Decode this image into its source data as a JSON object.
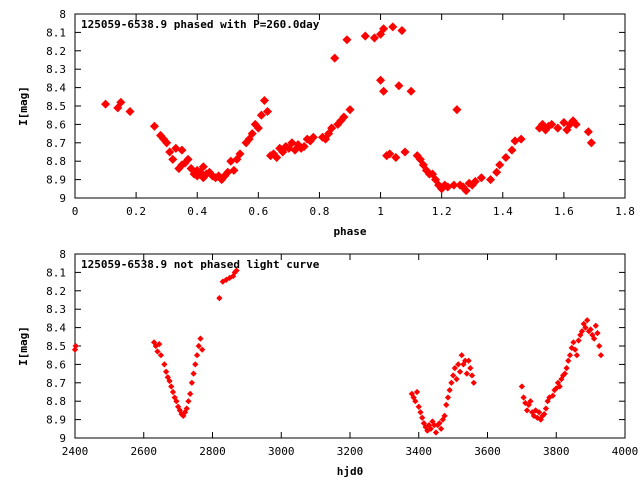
{
  "chart_data": [
    {
      "type": "scatter",
      "title": "125059-6538.9 phased with P=260.0day",
      "xlabel": "phase",
      "ylabel": "I[mag]",
      "xlim": [
        0,
        1.8
      ],
      "ylim": [
        8,
        9
      ],
      "y_inverted": true,
      "xticks": [
        "0",
        "0.2",
        "0.4",
        "0.6",
        "0.8",
        "1",
        "1.2",
        "1.4",
        "1.6",
        "1.8"
      ],
      "yticks": [
        "8",
        "8.1",
        "8.2",
        "8.3",
        "8.4",
        "8.5",
        "8.6",
        "8.7",
        "8.8",
        "8.9",
        "9"
      ],
      "grid": false,
      "legend": "none",
      "marker_color": "#ff0000",
      "series": [
        {
          "x": [
            0.1,
            0.14,
            0.15,
            0.18,
            0.26,
            0.28,
            0.29,
            0.3,
            0.31,
            0.32,
            0.33,
            0.34,
            0.35,
            0.35,
            0.36,
            0.37,
            0.38,
            0.39,
            0.4,
            0.4,
            0.41,
            0.42,
            0.42,
            0.43,
            0.44,
            0.45,
            0.46,
            0.47,
            0.48,
            0.49,
            0.5,
            0.51,
            0.52,
            0.53,
            0.54,
            0.56,
            0.57,
            0.58,
            0.59,
            0.6,
            0.61,
            0.62,
            0.63,
            0.64,
            0.65,
            0.66,
            0.67,
            0.68,
            0.69,
            0.7,
            0.71,
            0.72,
            0.73,
            0.74,
            0.75,
            0.76,
            0.77,
            0.78,
            0.81,
            0.82,
            0.83,
            0.84,
            0.85,
            0.86,
            0.87,
            0.88,
            0.89,
            0.9,
            0.95,
            0.98,
            1.0,
            1.0,
            1.01,
            1.01,
            1.02,
            1.03,
            1.04,
            1.05,
            1.06,
            1.07,
            1.08,
            1.1,
            1.12,
            1.13,
            1.14,
            1.15,
            1.16,
            1.17,
            1.18,
            1.19,
            1.2,
            1.21,
            1.22,
            1.24,
            1.25,
            1.26,
            1.27,
            1.28,
            1.29,
            1.3,
            1.31,
            1.33,
            1.36,
            1.38,
            1.39,
            1.41,
            1.43,
            1.44,
            1.46,
            1.52,
            1.53,
            1.54,
            1.55,
            1.56,
            1.58,
            1.6,
            1.61,
            1.62,
            1.63,
            1.64,
            1.68,
            1.69
          ],
          "y": [
            8.49,
            8.51,
            8.48,
            8.53,
            8.61,
            8.66,
            8.68,
            8.7,
            8.75,
            8.79,
            8.73,
            8.84,
            8.74,
            8.82,
            8.81,
            8.79,
            8.84,
            8.87,
            8.85,
            8.88,
            8.86,
            8.83,
            8.89,
            8.87,
            8.86,
            8.88,
            8.89,
            8.88,
            8.9,
            8.88,
            8.86,
            8.8,
            8.85,
            8.79,
            8.76,
            8.7,
            8.68,
            8.65,
            8.6,
            8.62,
            8.55,
            8.47,
            8.53,
            8.77,
            8.76,
            8.78,
            8.73,
            8.75,
            8.72,
            8.73,
            8.7,
            8.74,
            8.71,
            8.73,
            8.72,
            8.68,
            8.69,
            8.67,
            8.67,
            8.68,
            8.65,
            8.62,
            8.24,
            8.6,
            8.58,
            8.56,
            8.14,
            8.52,
            8.12,
            8.13,
            8.36,
            8.11,
            8.08,
            8.42,
            8.77,
            8.76,
            8.07,
            8.78,
            8.39,
            8.09,
            8.75,
            8.42,
            8.77,
            8.79,
            8.82,
            8.85,
            8.87,
            8.87,
            8.9,
            8.93,
            8.95,
            8.93,
            8.94,
            8.93,
            8.52,
            8.93,
            8.94,
            8.96,
            8.92,
            8.93,
            8.91,
            8.89,
            8.9,
            8.86,
            8.82,
            8.78,
            8.74,
            8.69,
            8.68,
            8.62,
            8.6,
            8.63,
            8.61,
            8.6,
            8.62,
            8.59,
            8.63,
            8.6,
            8.58,
            8.6,
            8.64,
            8.7
          ]
        }
      ]
    },
    {
      "type": "scatter",
      "title": "125059-6538.9 not phased light curve",
      "xlabel": "hjd0",
      "ylabel": "I[mag]",
      "xlim": [
        2400,
        4000
      ],
      "ylim": [
        8,
        9
      ],
      "y_inverted": true,
      "xticks": [
        "2400",
        "2600",
        "2800",
        "3000",
        "3200",
        "3400",
        "3600",
        "3800",
        "4000"
      ],
      "yticks": [
        "8",
        "8.1",
        "8.2",
        "8.3",
        "8.4",
        "8.5",
        "8.6",
        "8.7",
        "8.8",
        "8.9",
        "9"
      ],
      "grid": false,
      "legend": "none",
      "marker_color": "#ff0000",
      "series": [
        {
          "x": [
            2400,
            2402,
            2630,
            2635,
            2640,
            2645,
            2650,
            2660,
            2665,
            2670,
            2675,
            2680,
            2685,
            2690,
            2695,
            2700,
            2705,
            2710,
            2715,
            2720,
            2725,
            2730,
            2735,
            2740,
            2745,
            2750,
            2755,
            2760,
            2765,
            2770,
            2820,
            2830,
            2840,
            2850,
            2860,
            2865,
            2870,
            3380,
            3385,
            3390,
            3395,
            3400,
            3405,
            3410,
            3415,
            3420,
            3425,
            3430,
            3435,
            3440,
            3445,
            3450,
            3455,
            3460,
            3465,
            3470,
            3475,
            3480,
            3485,
            3490,
            3495,
            3500,
            3505,
            3510,
            3515,
            3520,
            3525,
            3530,
            3535,
            3540,
            3545,
            3550,
            3555,
            3560,
            3700,
            3705,
            3710,
            3715,
            3720,
            3725,
            3730,
            3735,
            3740,
            3745,
            3750,
            3755,
            3760,
            3765,
            3770,
            3775,
            3780,
            3790,
            3795,
            3800,
            3805,
            3810,
            3815,
            3820,
            3825,
            3830,
            3835,
            3840,
            3845,
            3850,
            3855,
            3860,
            3865,
            3870,
            3875,
            3880,
            3885,
            3890,
            3895,
            3900,
            3905,
            3910,
            3915,
            3920,
            3925,
            3930
          ],
          "y": [
            8.52,
            8.5,
            8.48,
            8.5,
            8.53,
            8.49,
            8.55,
            8.6,
            8.64,
            8.67,
            8.69,
            8.72,
            8.75,
            8.78,
            8.8,
            8.83,
            8.85,
            8.87,
            8.88,
            8.86,
            8.84,
            8.8,
            8.76,
            8.7,
            8.65,
            8.6,
            8.55,
            8.5,
            8.46,
            8.52,
            8.24,
            8.15,
            8.14,
            8.13,
            8.12,
            8.1,
            8.09,
            8.76,
            8.78,
            8.8,
            8.75,
            8.83,
            8.86,
            8.89,
            8.92,
            8.94,
            8.96,
            8.93,
            8.95,
            8.91,
            8.93,
            8.97,
            8.93,
            8.92,
            8.95,
            8.9,
            8.88,
            8.82,
            8.78,
            8.74,
            8.7,
            8.66,
            8.62,
            8.68,
            8.6,
            8.64,
            8.55,
            8.6,
            8.58,
            8.65,
            8.58,
            8.62,
            8.66,
            8.7,
            8.72,
            8.78,
            8.81,
            8.85,
            8.82,
            8.8,
            8.86,
            8.88,
            8.85,
            8.89,
            8.86,
            8.9,
            8.88,
            8.87,
            8.84,
            8.8,
            8.78,
            8.77,
            8.74,
            8.73,
            8.7,
            8.72,
            8.68,
            8.66,
            8.65,
            8.62,
            8.58,
            8.55,
            8.51,
            8.48,
            8.52,
            8.55,
            8.47,
            8.44,
            8.42,
            8.38,
            8.4,
            8.36,
            8.42,
            8.41,
            8.44,
            8.46,
            8.39,
            8.43,
            8.5,
            8.55
          ]
        }
      ]
    }
  ]
}
